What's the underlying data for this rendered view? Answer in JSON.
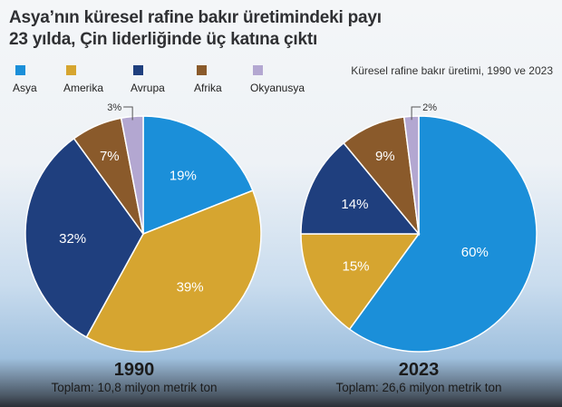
{
  "title": "Asya’nın küresel rafine bakır üretimindeki payı 23 yılda, Çin liderliğinde üç katına çıktı",
  "subtitle": "Küresel rafine bakır üretimi, 1990 ve 2023",
  "colors": {
    "asya": "#1b8fd9",
    "amerika": "#d6a530",
    "avrupa": "#1f3f7e",
    "afrika": "#8a5a2b",
    "okyanusya": "#b3a7d1"
  },
  "legend": [
    {
      "label": "Asya",
      "color_key": "asya"
    },
    {
      "label": "Amerika",
      "color_key": "amerika"
    },
    {
      "label": "Avrupa",
      "color_key": "avrupa"
    },
    {
      "label": "Afrika",
      "color_key": "afrika"
    },
    {
      "label": "Okyanusya",
      "color_key": "okyanusya"
    }
  ],
  "chart_data": [
    {
      "type": "pie",
      "year": "1990",
      "total": "Toplam: 10,8 milyon metrik ton",
      "slices": [
        {
          "name": "Asya",
          "value": 19,
          "label": "19%"
        },
        {
          "name": "Amerika",
          "value": 39,
          "label": "39%"
        },
        {
          "name": "Avrupa",
          "value": 32,
          "label": "32%"
        },
        {
          "name": "Afrika",
          "value": 7,
          "label": "7%"
        },
        {
          "name": "Okyanusya",
          "value": 3,
          "label": "3%"
        }
      ]
    },
    {
      "type": "pie",
      "year": "2023",
      "total": "Toplam: 26,6 milyon metrik ton",
      "slices": [
        {
          "name": "Asya",
          "value": 60,
          "label": "60%"
        },
        {
          "name": "Amerika",
          "value": 15,
          "label": "15%"
        },
        {
          "name": "Avrupa",
          "value": 14,
          "label": "14%"
        },
        {
          "name": "Afrika",
          "value": 9,
          "label": "9%"
        },
        {
          "name": "Okyanusya",
          "value": 2,
          "label": "2%"
        }
      ]
    }
  ]
}
